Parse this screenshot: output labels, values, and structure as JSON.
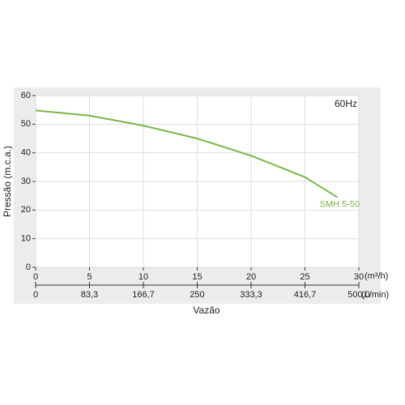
{
  "chart_data": {
    "type": "line",
    "annotation": "60Hz",
    "xlabel": "Vazão",
    "ylabel": "Pressão (m.c.a.)",
    "xunit": "(m³/h)",
    "x2unit": "(L/min)",
    "x": [
      0,
      5,
      10,
      15,
      20,
      25,
      28
    ],
    "series": [
      {
        "name": "SMH 5-50",
        "color": "#7ab648",
        "values": [
          54.8,
          53,
          49.5,
          45,
          39,
          31.5,
          24.5
        ]
      }
    ],
    "xlim": [
      0,
      30
    ],
    "xticks": [
      0,
      5,
      10,
      15,
      20,
      25,
      30
    ],
    "x2lim": [
      0,
      500
    ],
    "x2ticks": [
      0,
      {
        "value": 83.3,
        "label": "83,3"
      },
      {
        "value": 166.7,
        "label": "166,7"
      },
      250,
      {
        "value": 333.3,
        "label": "333,3"
      },
      {
        "value": 416.7,
        "label": "416,7"
      },
      {
        "value": 500,
        "label": "500,0"
      }
    ],
    "ylim": [
      0,
      60
    ],
    "yticks": [
      0,
      10,
      20,
      30,
      40,
      50,
      60
    ],
    "grid": true
  }
}
